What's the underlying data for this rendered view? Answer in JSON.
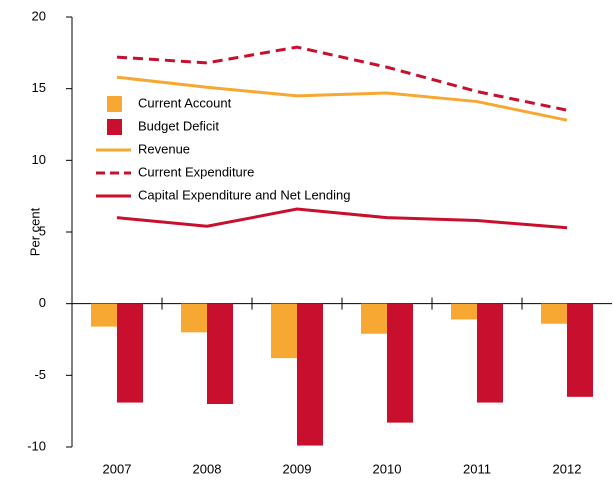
{
  "chart_data": {
    "type": "bar-line",
    "ylabel": "Per cent",
    "categories": [
      "2007",
      "2008",
      "2009",
      "2010",
      "2011",
      "2012"
    ],
    "series": [
      {
        "name": "Current Account",
        "type": "bar",
        "color": "#f7a833",
        "values": [
          -1.6,
          -2.0,
          -3.8,
          -2.1,
          -1.1,
          -1.4
        ]
      },
      {
        "name": "Budget Deficit",
        "type": "bar",
        "color": "#c8102e",
        "values": [
          -6.9,
          -7.0,
          -9.9,
          -8.3,
          -6.9,
          -6.5
        ]
      },
      {
        "name": "Revenue",
        "type": "line",
        "color": "#f7a833",
        "dashed": false,
        "values": [
          15.8,
          15.1,
          14.5,
          14.7,
          14.1,
          12.8
        ]
      },
      {
        "name": "Current Expenditure",
        "type": "line",
        "color": "#c8102e",
        "dashed": true,
        "values": [
          17.2,
          16.8,
          17.9,
          16.5,
          14.8,
          13.5
        ]
      },
      {
        "name": "Capital Expenditure and Net Lending",
        "type": "line",
        "color": "#c8102e",
        "dashed": false,
        "values": [
          6.0,
          5.4,
          6.6,
          6.0,
          5.8,
          5.3
        ]
      }
    ],
    "ylim": [
      -10,
      20
    ],
    "yticks": [
      -10,
      -5,
      0,
      5,
      10,
      15,
      20
    ],
    "legend": "upper left"
  }
}
